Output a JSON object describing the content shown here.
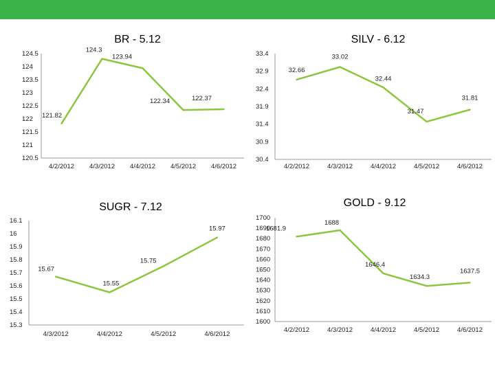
{
  "top_bar": {
    "color": "#3db449"
  },
  "line_color": "#8cc63f",
  "chart_data": [
    {
      "type": "line",
      "title": "BR - 5.12",
      "categories": [
        "4/2/2012",
        "4/3/2012",
        "4/4/2012",
        "4/5/2012",
        "4/6/2012"
      ],
      "values": [
        121.82,
        124.3,
        123.94,
        122.34,
        122.37
      ],
      "data_labels": [
        "121.82",
        "124.3",
        "123.94",
        "122.34",
        "122.37"
      ],
      "yticks": [
        "124.5",
        "124",
        "123.5",
        "123",
        "122.5",
        "122",
        "121.5",
        "121",
        "120.5"
      ],
      "ylim": [
        120.5,
        124.5
      ],
      "grid": false
    },
    {
      "type": "line",
      "title": "SILV - 6.12",
      "categories": [
        "4/2/2012",
        "4/3/2012",
        "4/4/2012",
        "4/5/2012",
        "4/6/2012"
      ],
      "values": [
        32.66,
        33.02,
        32.44,
        31.47,
        31.81
      ],
      "data_labels": [
        "32.66",
        "33.02",
        "32.44",
        "31.47",
        "31.81"
      ],
      "yticks": [
        "33.4",
        "32.9",
        "32.4",
        "31.9",
        "31.4",
        "30.9",
        "30.4"
      ],
      "ylim": [
        30.4,
        33.4
      ],
      "grid": false
    },
    {
      "type": "line",
      "title": "SUGR - 7.12",
      "categories": [
        "4/3/2012",
        "4/4/2012",
        "4/5/2012",
        "4/6/2012"
      ],
      "values": [
        15.67,
        15.55,
        15.75,
        15.97
      ],
      "data_labels": [
        "15.67",
        "15.55",
        "15.75",
        "15.97"
      ],
      "yticks": [
        "16.1",
        "16",
        "15.9",
        "15.8",
        "15.7",
        "15.6",
        "15.5",
        "15.4",
        "15.3"
      ],
      "ylim": [
        15.3,
        16.1
      ],
      "grid": false
    },
    {
      "type": "line",
      "title": "GOLD - 9.12",
      "categories": [
        "4/2/2012",
        "4/3/2012",
        "4/4/2012",
        "4/5/2012",
        "4/6/2012"
      ],
      "values": [
        1681.9,
        1688,
        1646.4,
        1634.3,
        1637.5
      ],
      "data_labels": [
        "1681.9",
        "1688",
        "1646.4",
        "1634.3",
        "1637.5"
      ],
      "yticks": [
        "1700",
        "1690",
        "1680",
        "1670",
        "1660",
        "1650",
        "1640",
        "1630",
        "1620",
        "1610",
        "1600"
      ],
      "ylim": [
        1600,
        1700
      ],
      "grid": false
    }
  ]
}
